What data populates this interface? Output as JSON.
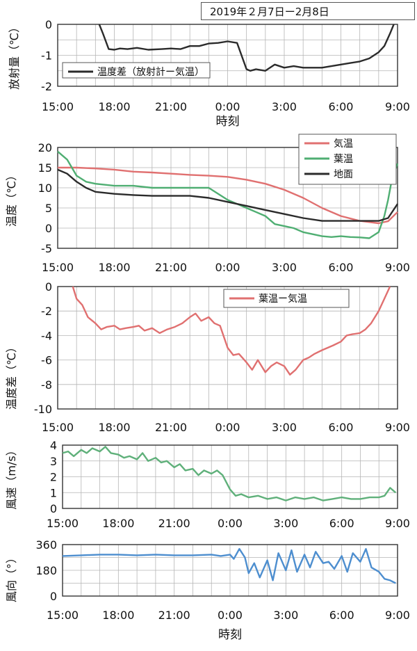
{
  "date_range": "2019年２月7日ー2月8日",
  "colors": {
    "black": "#2b2b2b",
    "red": "#e07070",
    "green": "#4fae72",
    "green2": "#5fb07a",
    "blue": "#4d8ecf",
    "grid": "#b5b5b5"
  },
  "chart_data": [
    {
      "type": "line",
      "id": "radiation",
      "ylabel": "放射量（℃）",
      "xlabel": "時刻",
      "x_ticks": [
        "15:00",
        "18:00",
        "21:00",
        "0:00",
        "3:00",
        "6:00",
        "9:00"
      ],
      "xlim": [
        0,
        18
      ],
      "ylim": [
        -2,
        0
      ],
      "yticks": [
        0,
        -1,
        -2
      ],
      "y_gridlines": [
        0,
        -0.5,
        -1,
        -1.5,
        -2
      ],
      "legend_position": "left",
      "series": [
        {
          "name": "温度差（放射計ー気温）",
          "color": "#2b2b2b",
          "x": [
            2.2,
            2.4,
            2.7,
            3.0,
            3.3,
            3.7,
            4.2,
            4.8,
            5.5,
            6.0,
            6.5,
            7.0,
            7.5,
            8.0,
            8.5,
            9.0,
            9.5,
            10.0,
            10.2,
            10.5,
            11.0,
            11.5,
            12.0,
            12.5,
            13.0,
            13.5,
            14.0,
            14.5,
            15.0,
            15.5,
            16.0,
            16.5,
            17.0,
            17.3,
            17.6,
            17.8
          ],
          "y": [
            0,
            -0.3,
            -0.8,
            -0.82,
            -0.78,
            -0.8,
            -0.76,
            -0.82,
            -0.8,
            -0.78,
            -0.8,
            -0.7,
            -0.7,
            -0.62,
            -0.6,
            -0.55,
            -0.6,
            -1.45,
            -1.5,
            -1.45,
            -1.5,
            -1.3,
            -1.4,
            -1.35,
            -1.4,
            -1.4,
            -1.4,
            -1.35,
            -1.3,
            -1.25,
            -1.2,
            -1.1,
            -0.9,
            -0.7,
            -0.3,
            0
          ]
        }
      ]
    },
    {
      "type": "line",
      "id": "temperature",
      "ylabel": "温度（℃）",
      "x_ticks": [
        "15:00",
        "18:00",
        "21:00",
        "0:00",
        "3:00",
        "6:00",
        "9:00"
      ],
      "xlim": [
        0,
        18
      ],
      "ylim": [
        -5,
        20
      ],
      "yticks": [
        20,
        15,
        10,
        5,
        0,
        -5
      ],
      "legend_position": "top-right",
      "series": [
        {
          "name": "気温",
          "color": "#e07070",
          "x": [
            0,
            1,
            2,
            3,
            4,
            5,
            6,
            7,
            8,
            9,
            10,
            11,
            12,
            13,
            14,
            15,
            16,
            17,
            17.5,
            18
          ],
          "y": [
            15,
            15,
            14.8,
            14.5,
            14,
            13.8,
            13.5,
            13.2,
            13,
            12.7,
            12,
            11,
            9.5,
            7.5,
            5,
            3,
            1.8,
            1.2,
            1.7,
            4
          ]
        },
        {
          "name": "葉温",
          "color": "#4fae72",
          "x": [
            0,
            0.5,
            1,
            1.5,
            2,
            3,
            4,
            5,
            6,
            7,
            8,
            9,
            9.5,
            10,
            10.5,
            11,
            11.5,
            12,
            12.5,
            13,
            13.5,
            14,
            14.5,
            15,
            15.5,
            16,
            16.5,
            17,
            17.3,
            17.5,
            17.7,
            18
          ],
          "y": [
            19,
            17,
            13,
            11.5,
            11,
            10.5,
            10.5,
            10,
            10,
            10,
            10,
            7,
            6,
            5,
            4,
            3,
            1,
            0.5,
            0,
            -1,
            -1.5,
            -2,
            -2.2,
            -2,
            -2.2,
            -2.3,
            -2.5,
            -1,
            3,
            7,
            12,
            16
          ]
        },
        {
          "name": "地面",
          "color": "#2b2b2b",
          "x": [
            0,
            0.5,
            1,
            1.5,
            2,
            3,
            4,
            5,
            6,
            7,
            8,
            9,
            10,
            11,
            12,
            13,
            14,
            15,
            16,
            17,
            17.5,
            18
          ],
          "y": [
            14.5,
            13.5,
            11.5,
            10,
            9,
            8.5,
            8.2,
            8,
            8,
            8,
            7.5,
            6.5,
            5.5,
            4.5,
            3.5,
            2.5,
            1.8,
            1.8,
            1.8,
            1.8,
            2.5,
            6
          ]
        }
      ]
    },
    {
      "type": "line",
      "id": "leaf_minus_air",
      "ylabel": "温度差（℃）",
      "x_ticks": [
        "15:00",
        "18:00",
        "21:00",
        "0:00",
        "3:00",
        "6:00",
        "9:00"
      ],
      "xlim": [
        0,
        18
      ],
      "ylim": [
        -10,
        0
      ],
      "yticks": [
        0,
        -2,
        -4,
        -6,
        -8,
        -10
      ],
      "legend_position": "top-right",
      "series": [
        {
          "name": "葉温ー気温",
          "color": "#e07070",
          "x": [
            0.8,
            1.0,
            1.3,
            1.6,
            2.0,
            2.3,
            2.6,
            3.0,
            3.3,
            3.6,
            4.0,
            4.3,
            4.6,
            5.0,
            5.4,
            5.8,
            6.2,
            6.6,
            7.0,
            7.3,
            7.6,
            8.0,
            8.3,
            8.6,
            9.0,
            9.3,
            9.6,
            10.0,
            10.3,
            10.6,
            11.0,
            11.3,
            11.6,
            12.0,
            12.3,
            12.6,
            13.0,
            13.3,
            13.6,
            14.0,
            14.3,
            14.6,
            15.0,
            15.3,
            15.6,
            16.0,
            16.3,
            16.6,
            17.0,
            17.3,
            17.6
          ],
          "y": [
            0,
            -1,
            -1.5,
            -2.5,
            -3,
            -3.5,
            -3.3,
            -3.2,
            -3.5,
            -3.4,
            -3.3,
            -3.2,
            -3.6,
            -3.4,
            -3.8,
            -3.5,
            -3.3,
            -3,
            -2.5,
            -2.2,
            -2.8,
            -2.5,
            -3,
            -3.2,
            -5,
            -5.6,
            -5.5,
            -6.2,
            -6.8,
            -6,
            -7,
            -6.5,
            -6.2,
            -6.5,
            -7.2,
            -6.8,
            -6,
            -5.8,
            -5.5,
            -5.2,
            -5,
            -4.8,
            -4.5,
            -4,
            -3.9,
            -3.8,
            -3.5,
            -3,
            -2,
            -1,
            0
          ]
        }
      ]
    },
    {
      "type": "line",
      "id": "wind_speed",
      "ylabel": "風速（m/s）",
      "x_ticks": [
        "15:00",
        "18:00",
        "21:00",
        "0:00",
        "3:00",
        "6:00",
        "9:00"
      ],
      "xlim": [
        0,
        18
      ],
      "ylim": [
        0,
        4
      ],
      "yticks": [
        4,
        3,
        2,
        1,
        0
      ],
      "series": [
        {
          "color": "#5fb07a",
          "x": [
            0,
            0.3,
            0.6,
            1,
            1.3,
            1.6,
            2,
            2.3,
            2.6,
            3,
            3.3,
            3.6,
            4,
            4.3,
            4.6,
            5,
            5.3,
            5.6,
            6,
            6.3,
            6.6,
            7,
            7.3,
            7.6,
            8,
            8.3,
            8.6,
            9,
            9.3,
            9.6,
            10,
            10.5,
            11,
            11.5,
            12,
            12.5,
            13,
            13.5,
            14,
            14.5,
            15,
            15.5,
            16,
            16.5,
            17,
            17.3,
            17.6,
            17.9
          ],
          "y": [
            3.5,
            3.6,
            3.3,
            3.7,
            3.5,
            3.8,
            3.6,
            3.9,
            3.5,
            3.4,
            3.2,
            3.3,
            3.1,
            3.5,
            3.0,
            3.2,
            2.9,
            3.0,
            2.6,
            2.8,
            2.4,
            2.5,
            2.1,
            2.4,
            2.2,
            2.4,
            2.1,
            1.2,
            0.8,
            0.9,
            0.7,
            0.8,
            0.6,
            0.7,
            0.5,
            0.7,
            0.6,
            0.7,
            0.5,
            0.6,
            0.7,
            0.6,
            0.6,
            0.7,
            0.7,
            0.8,
            1.3,
            1.0
          ]
        }
      ]
    },
    {
      "type": "line",
      "id": "wind_direction",
      "ylabel": "風向（°）",
      "xlabel": "時刻",
      "x_ticks": [
        "15:00",
        "18:00",
        "21:00",
        "0:00",
        "3:00",
        "6:00",
        "9:00"
      ],
      "xlim": [
        0,
        18
      ],
      "ylim": [
        0,
        360
      ],
      "yticks": [
        360,
        180,
        0
      ],
      "series": [
        {
          "color": "#4d8ecf",
          "x": [
            0,
            1,
            2,
            3,
            4,
            5,
            6,
            7,
            8,
            8.5,
            9,
            9.2,
            9.5,
            9.8,
            10.0,
            10.3,
            10.6,
            11.0,
            11.3,
            11.6,
            12.0,
            12.3,
            12.6,
            13.0,
            13.3,
            13.6,
            14.0,
            14.3,
            14.6,
            15.0,
            15.3,
            15.6,
            16.0,
            16.3,
            16.6,
            17.0,
            17.3,
            17.6,
            17.9
          ],
          "y": [
            280,
            285,
            290,
            290,
            285,
            290,
            285,
            285,
            290,
            280,
            290,
            260,
            330,
            270,
            160,
            230,
            130,
            250,
            110,
            300,
            180,
            320,
            170,
            290,
            200,
            310,
            230,
            240,
            190,
            280,
            170,
            300,
            240,
            330,
            200,
            170,
            120,
            110,
            90
          ]
        }
      ]
    }
  ]
}
